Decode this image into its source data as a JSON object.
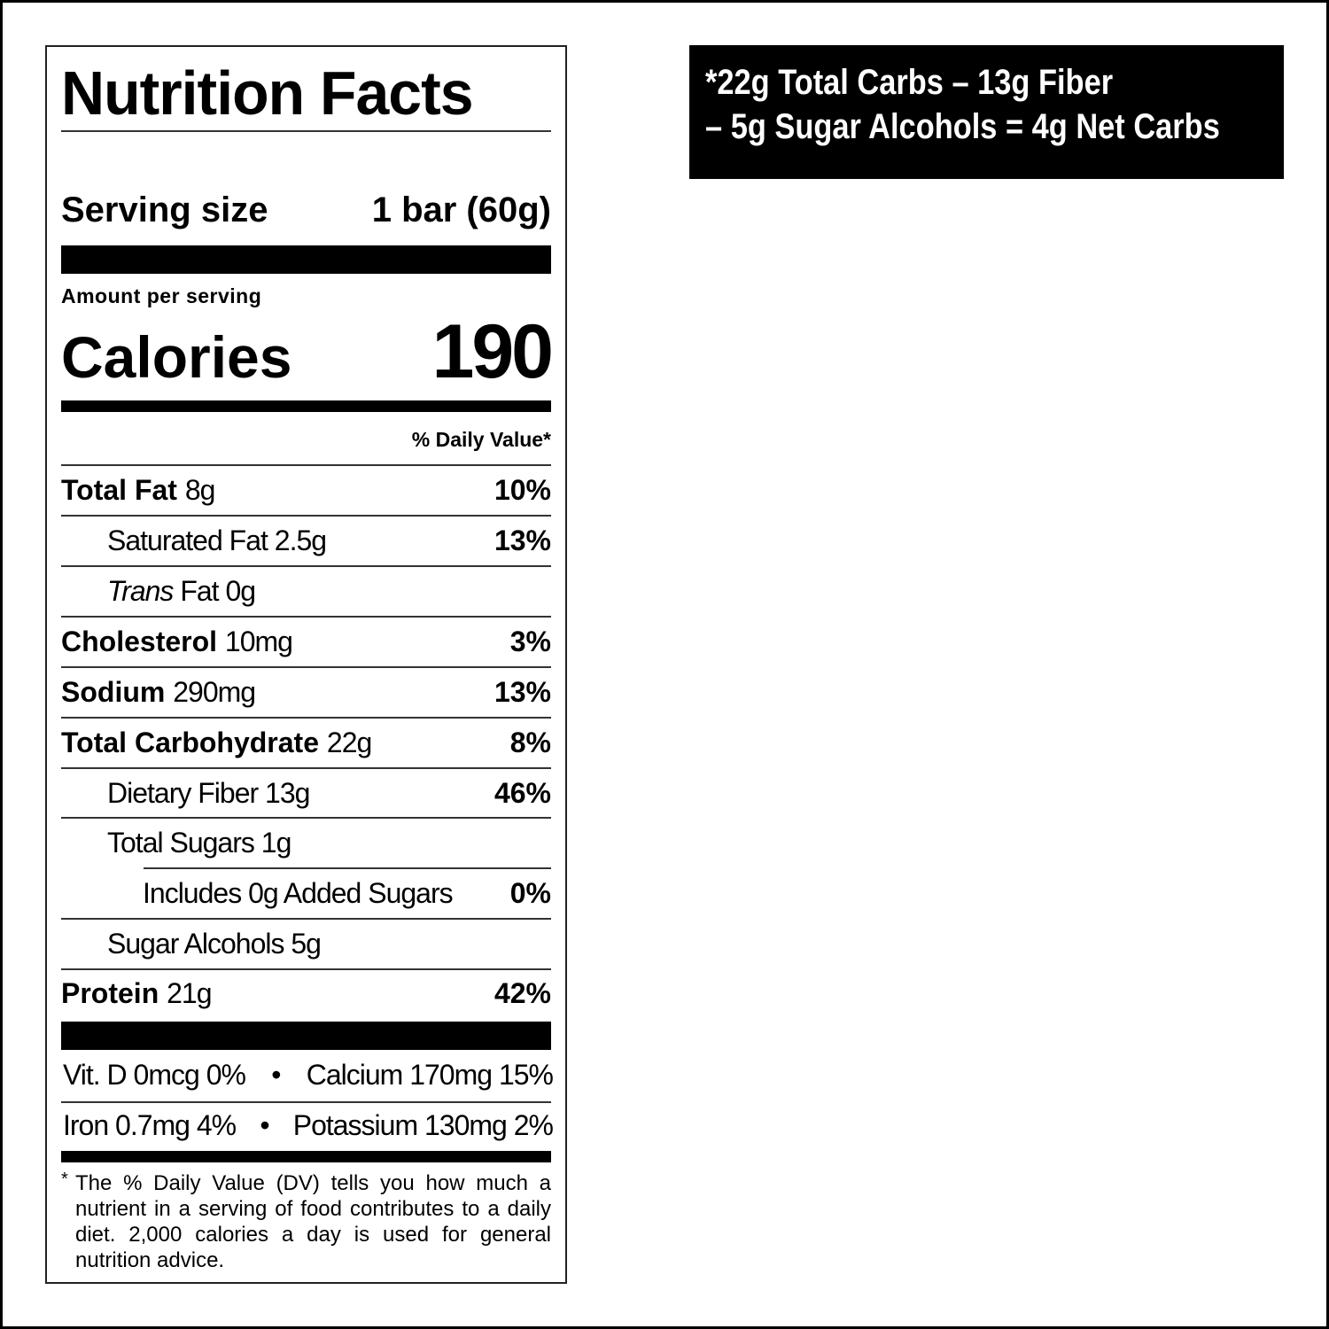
{
  "label": {
    "title": "Nutrition Facts",
    "serving_size_label": "Serving size",
    "serving_size_value": "1 bar (60g)",
    "amount_per_serving": "Amount per serving",
    "calories_label": "Calories",
    "calories_value": "190",
    "daily_value_header": "% Daily Value*",
    "nutrients": [
      {
        "name": "Total Fat",
        "amount": "8g",
        "dv": "10%"
      },
      {
        "name": "Saturated Fat",
        "amount": "2.5g",
        "dv": "13%"
      },
      {
        "name_italic": "Trans",
        "name": "Fat",
        "amount": "0g",
        "dv": ""
      },
      {
        "name": "Cholesterol",
        "amount": "10mg",
        "dv": "3%"
      },
      {
        "name": "Sodium",
        "amount": "290mg",
        "dv": "13%"
      },
      {
        "name": "Total Carbohydrate",
        "amount": "22g",
        "dv": "8%"
      },
      {
        "name": "Dietary Fiber",
        "amount": "13g",
        "dv": "46%"
      },
      {
        "name": "Total Sugars",
        "amount": "1g",
        "dv": ""
      },
      {
        "name": "Includes 0g Added Sugars",
        "amount": "",
        "dv": "0%"
      },
      {
        "name": "Sugar Alcohols",
        "amount": "5g",
        "dv": ""
      },
      {
        "name": "Protein",
        "amount": "21g",
        "dv": "42%"
      }
    ],
    "vitamins": [
      {
        "left": "Vit. D 0mcg 0%",
        "right": "Calcium 170mg 15%"
      },
      {
        "left": "Iron 0.7mg 4%",
        "right": "Potassium 130mg 2%"
      }
    ],
    "bullet": "•",
    "footnote_star": "*",
    "footnote": "The % Daily Value (DV) tells you how much a nutrient in a serving of food contributes to a daily diet. 2,000 calories a day is used for general nutrition advice."
  },
  "net_carbs": {
    "line1": "*22g Total Carbs – 13g Fiber",
    "line2": "– 5g Sugar Alcohols = 4g Net Carbs"
  }
}
